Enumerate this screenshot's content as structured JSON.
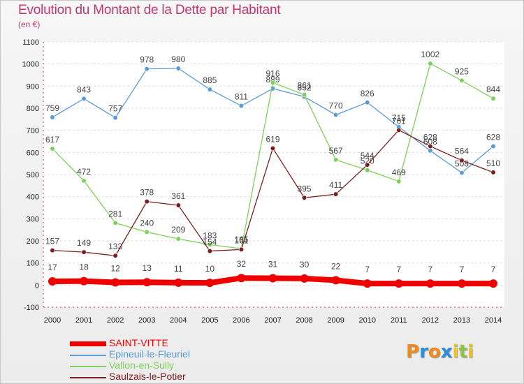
{
  "title": "Evolution du Montant de la Dette par Habitant",
  "subtitle": "(en €)",
  "logo": {
    "letters": [
      "P",
      "r",
      "o",
      "x",
      "i",
      "t",
      "i"
    ],
    "colors": [
      "#f08a1c",
      "#2a8fd8",
      "#f08a1c",
      "#2a8fd8",
      "#f2c21a",
      "#8cc63f",
      "#f2c21a"
    ]
  },
  "chart_data": {
    "type": "line",
    "x": [
      "2000",
      "2001",
      "2002",
      "2003",
      "2004",
      "2005",
      "2006",
      "2007",
      "2008",
      "2009",
      "2010",
      "2011",
      "2012",
      "2013",
      "2014"
    ],
    "ylim": [
      -100,
      1100
    ],
    "yticks": [
      "-100",
      "0",
      "100",
      "200",
      "300",
      "400",
      "500",
      "600",
      "700",
      "800",
      "900",
      "1000",
      "1100"
    ],
    "grid": "horizontal",
    "legend_position": "bottom-left",
    "series": [
      {
        "name": "SAINT-VITTE",
        "color": "#ee0000",
        "values": [
          17,
          18,
          12,
          13,
          11,
          10,
          32,
          31,
          30,
          22,
          7,
          7,
          7,
          7,
          7
        ],
        "labels": [
          "17",
          "18",
          "12",
          "13",
          "11",
          "10",
          "32",
          "31",
          "30",
          "22",
          "7",
          "7",
          "7",
          "7",
          "7"
        ]
      },
      {
        "name": "Epineuil-le-Fleuriel",
        "color": "#5b9bd5",
        "values": [
          759,
          843,
          757,
          978,
          980,
          885,
          811,
          889,
          852,
          770,
          826,
          715,
          608,
          508,
          628
        ],
        "labels": [
          "759",
          "843",
          "757",
          "978",
          "980",
          "885",
          "811",
          "889",
          "852",
          "770",
          "826",
          "715",
          "608",
          "508",
          "628"
        ]
      },
      {
        "name": "Vallon-en-Sully",
        "color": "#7ed05a",
        "values": [
          617,
          472,
          281,
          240,
          209,
          183,
          165,
          916,
          861,
          567,
          520,
          469,
          1002,
          925,
          844
        ],
        "labels": [
          "617",
          "472",
          "281",
          "240",
          "209",
          "183",
          "165",
          "916",
          "861",
          "567",
          "520",
          "469",
          "1002",
          "925",
          "844"
        ]
      },
      {
        "name": "Saulzais-le-Potier",
        "color": "#7a1f1f",
        "values": [
          157,
          149,
          133,
          378,
          361,
          154,
          161,
          619,
          395,
          411,
          544,
          701,
          628,
          564,
          510
        ],
        "labels": [
          "157",
          "149",
          "133",
          "378",
          "361",
          "154",
          "161",
          "619",
          "395",
          "411",
          "544",
          "701",
          "628",
          "564",
          "510"
        ]
      }
    ]
  }
}
